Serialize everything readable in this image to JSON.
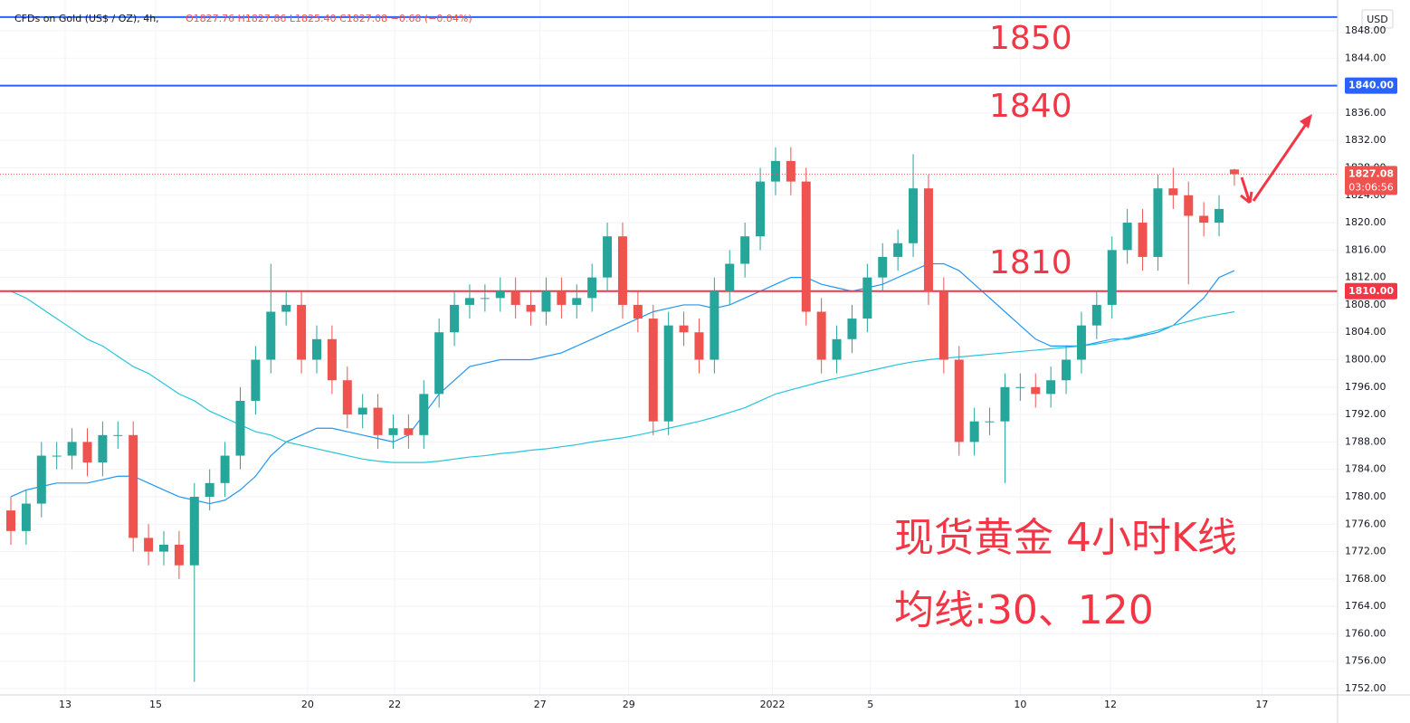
{
  "header": {
    "symbol": "CFDs on Gold (US$ / OZ), 4h,",
    "ohlc": "O1827.76  H1827.86  L1825.40  C1827.08  −0.68 (−0.04%)"
  },
  "chart_data": {
    "type": "candlestick",
    "currency": "USD",
    "countdown": "03:06:56",
    "up_color": "#26a69a",
    "down_color": "#ef5350",
    "x": [
      0,
      1,
      2,
      3,
      4,
      5,
      6,
      7,
      8,
      9,
      10,
      11,
      12,
      13,
      14,
      15,
      16,
      17,
      18,
      19,
      20,
      21,
      22,
      23,
      24,
      25,
      26,
      27,
      28,
      29,
      30,
      31,
      32,
      33,
      34,
      35,
      36,
      37,
      38,
      39,
      40,
      41,
      42,
      43,
      44,
      45,
      46,
      47,
      48,
      49,
      50,
      51,
      52,
      53,
      54,
      55,
      56,
      57,
      58,
      59,
      60,
      61,
      62,
      63,
      64,
      65,
      66,
      67,
      68,
      69,
      70,
      71,
      72,
      73,
      74,
      75,
      76,
      77,
      78,
      79,
      80
    ],
    "open": [
      1778,
      1775,
      1779,
      1786,
      1786,
      1788,
      1785,
      1789,
      1789,
      1774,
      1772,
      1773,
      1770,
      1780,
      1782,
      1786,
      1794,
      1800,
      1807,
      1808,
      1800,
      1803,
      1797,
      1792,
      1793,
      1789,
      1790,
      1789,
      1795,
      1804,
      1808,
      1809,
      1809,
      1810,
      1808,
      1807,
      1810,
      1808,
      1809,
      1812,
      1818,
      1808,
      1806,
      1791,
      1805,
      1804,
      1800,
      1810,
      1814,
      1818,
      1826,
      1829,
      1826,
      1807,
      1800,
      1803,
      1806,
      1812,
      1815,
      1817,
      1825,
      1810,
      1800,
      1788,
      1791,
      1791,
      1796,
      1796,
      1795,
      1797,
      1800,
      1805,
      1808,
      1816,
      1820,
      1815,
      1825,
      1824,
      1821,
      1820,
      1827.76
    ],
    "high": [
      1780,
      1781,
      1788,
      1788,
      1790,
      1790,
      1791,
      1791,
      1791,
      1776,
      1775,
      1775,
      1782,
      1784,
      1788,
      1796,
      1802,
      1814,
      1810,
      1810,
      1805,
      1805,
      1799,
      1795,
      1795,
      1792,
      1792,
      1797,
      1806,
      1810,
      1811,
      1811,
      1812,
      1812,
      1810,
      1812,
      1812,
      1811,
      1814,
      1820,
      1820,
      1810,
      1808,
      1807,
      1807,
      1806,
      1812,
      1816,
      1820,
      1828,
      1831,
      1831,
      1828,
      1809,
      1805,
      1808,
      1814,
      1817,
      1819,
      1830,
      1827,
      1812,
      1802,
      1793,
      1793,
      1798,
      1798,
      1798,
      1799,
      1802,
      1807,
      1810,
      1818,
      1822,
      1822,
      1827,
      1828,
      1826,
      1823,
      1824,
      1827.86
    ],
    "low": [
      1773,
      1773,
      1777,
      1784,
      1784,
      1783,
      1783,
      1787,
      1772,
      1770,
      1770,
      1768,
      1753,
      1778,
      1780,
      1784,
      1792,
      1798,
      1805,
      1798,
      1798,
      1795,
      1790,
      1790,
      1787,
      1787,
      1787,
      1787,
      1793,
      1802,
      1806,
      1807,
      1807,
      1806,
      1805,
      1805,
      1806,
      1806,
      1807,
      1810,
      1806,
      1804,
      1789,
      1789,
      1802,
      1798,
      1798,
      1808,
      1812,
      1816,
      1824,
      1824,
      1805,
      1798,
      1798,
      1801,
      1804,
      1810,
      1813,
      1815,
      1808,
      1798,
      1786,
      1786,
      1789,
      1782,
      1794,
      1793,
      1793,
      1795,
      1798,
      1803,
      1806,
      1814,
      1813,
      1813,
      1822,
      1811,
      1818,
      1818,
      1825.4
    ],
    "close": [
      1775,
      1779,
      1786,
      1786,
      1788,
      1785,
      1789,
      1789,
      1774,
      1772,
      1773,
      1770,
      1780,
      1782,
      1786,
      1794,
      1800,
      1807,
      1808,
      1800,
      1803,
      1797,
      1792,
      1793,
      1789,
      1790,
      1789,
      1795,
      1804,
      1808,
      1809,
      1809,
      1810,
      1808,
      1807,
      1810,
      1808,
      1809,
      1812,
      1818,
      1808,
      1806,
      1791,
      1805,
      1804,
      1800,
      1810,
      1814,
      1818,
      1826,
      1829,
      1826,
      1807,
      1800,
      1803,
      1806,
      1812,
      1815,
      1817,
      1825,
      1810,
      1800,
      1788,
      1791,
      1791,
      1796,
      1796,
      1795,
      1797,
      1800,
      1805,
      1808,
      1816,
      1820,
      1815,
      1825,
      1824,
      1821,
      1820,
      1822,
      1827.08
    ],
    "moving_averages": [
      {
        "color": "#2196f3",
        "values": [
          1780,
          1781,
          1781.5,
          1782,
          1782,
          1782,
          1782.5,
          1783,
          1783,
          1782,
          1781,
          1780,
          1779.5,
          1779,
          1779.5,
          1781,
          1783,
          1786,
          1788,
          1789,
          1790,
          1790,
          1789.5,
          1789,
          1788.5,
          1788,
          1789,
          1792,
          1795,
          1797,
          1799,
          1799.5,
          1800,
          1800,
          1800,
          1800.5,
          1801,
          1802,
          1803,
          1804,
          1805,
          1806,
          1807,
          1807.5,
          1808,
          1808,
          1807.5,
          1808,
          1809,
          1810,
          1811,
          1812,
          1812,
          1811,
          1810.5,
          1810,
          1810.5,
          1811,
          1812,
          1813,
          1814,
          1814,
          1813,
          1811,
          1809,
          1807,
          1805,
          1803,
          1802,
          1802,
          1802,
          1802.5,
          1803,
          1803,
          1803.5,
          1804,
          1805,
          1807,
          1809,
          1812,
          1813
        ]
      },
      {
        "color": "#26c6da",
        "values": [
          1810,
          1809,
          1807.5,
          1806,
          1804.5,
          1803,
          1802,
          1800.5,
          1799,
          1798,
          1796.5,
          1795,
          1794,
          1792.5,
          1791.5,
          1790.5,
          1789.5,
          1789,
          1788,
          1787.5,
          1787,
          1786.5,
          1786,
          1785.5,
          1785.2,
          1785,
          1785,
          1785,
          1785.2,
          1785.5,
          1785.8,
          1786,
          1786.3,
          1786.5,
          1786.8,
          1787,
          1787.3,
          1787.6,
          1788,
          1788.3,
          1788.6,
          1789,
          1789.5,
          1790,
          1790.5,
          1791,
          1791.6,
          1792.3,
          1793,
          1794,
          1795,
          1795.6,
          1796.2,
          1796.8,
          1797.3,
          1797.8,
          1798.3,
          1798.8,
          1799.3,
          1799.7,
          1800,
          1800.2,
          1800.4,
          1800.6,
          1800.8,
          1801,
          1801.2,
          1801.4,
          1801.6,
          1801.8,
          1802,
          1802.3,
          1802.7,
          1803.2,
          1803.7,
          1804.3,
          1805,
          1805.6,
          1806.2,
          1806.6,
          1807
        ]
      }
    ],
    "levels": [
      {
        "value": 1850,
        "color": "#2962ff"
      },
      {
        "value": 1840,
        "color": "#2962ff",
        "label": "1840.00"
      },
      {
        "value": 1810,
        "color": "#f23645",
        "label": "1810.00"
      }
    ],
    "annotations": [
      {
        "text": "1850"
      },
      {
        "text": "1840"
      },
      {
        "text": "1810"
      },
      {
        "text": "现货黄金 4小时K线"
      },
      {
        "text": "均线:30、120"
      }
    ],
    "xlim": [
      -0.71,
      86.75
    ],
    "xticks": [
      {
        "value": 3.55,
        "label": "13"
      },
      {
        "value": 9.47,
        "label": "15"
      },
      {
        "value": 19.4,
        "label": "20"
      },
      {
        "value": 25.1,
        "label": "22"
      },
      {
        "value": 34.6,
        "label": "27"
      },
      {
        "value": 40.4,
        "label": "29"
      },
      {
        "value": 49.8,
        "label": "2022"
      },
      {
        "value": 56.2,
        "label": "5"
      },
      {
        "value": 66.0,
        "label": "10"
      },
      {
        "value": 71.9,
        "label": "12"
      },
      {
        "value": 81.8,
        "label": "17"
      }
    ],
    "ylim": [
      1751.08,
      1852.49
    ],
    "yticks": [
      {
        "value": 1752,
        "label": "1752.00"
      },
      {
        "value": 1756,
        "label": "1756.00"
      },
      {
        "value": 1760,
        "label": "1760.00"
      },
      {
        "value": 1764,
        "label": "1764.00"
      },
      {
        "value": 1768,
        "label": "1768.00"
      },
      {
        "value": 1772,
        "label": "1772.00"
      },
      {
        "value": 1776,
        "label": "1776.00"
      },
      {
        "value": 1780,
        "label": "1780.00"
      },
      {
        "value": 1784,
        "label": "1784.00"
      },
      {
        "value": 1788,
        "label": "1788.00"
      },
      {
        "value": 1792,
        "label": "1792.00"
      },
      {
        "value": 1796,
        "label": "1796.00"
      },
      {
        "value": 1800,
        "label": "1800.00"
      },
      {
        "value": 1804,
        "label": "1804.00"
      },
      {
        "value": 1808,
        "label": "1808.00"
      },
      {
        "value": 1812,
        "label": "1812.00"
      },
      {
        "value": 1816,
        "label": "1816.00"
      },
      {
        "value": 1820,
        "label": "1820.00"
      },
      {
        "value": 1824,
        "label": "1824.00"
      },
      {
        "value": 1828,
        "label": "1828.00"
      },
      {
        "value": 1832,
        "label": "1832.00"
      },
      {
        "value": 1836,
        "label": "1836.00"
      },
      {
        "value": 1840,
        "label": "1840.00"
      },
      {
        "value": 1844,
        "label": "1844.00"
      },
      {
        "value": 1848,
        "label": "1848.00"
      }
    ],
    "grid": true
  }
}
